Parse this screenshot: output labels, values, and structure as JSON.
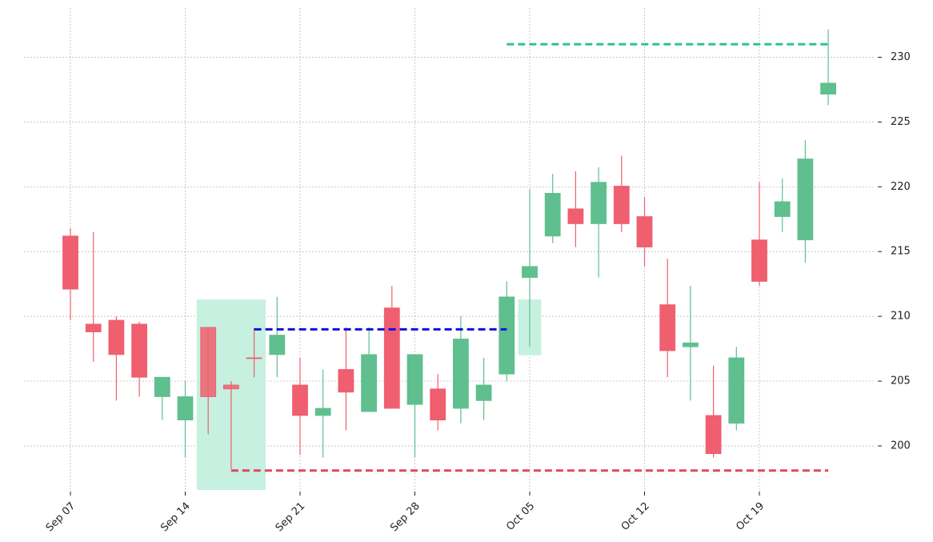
{
  "chart_data": {
    "type": "candlestick",
    "categories": [
      "Sep 07",
      null,
      null,
      null,
      null,
      "Sep 14",
      null,
      null,
      null,
      null,
      "Sep 21",
      null,
      null,
      null,
      null,
      "Sep 28",
      null,
      null,
      null,
      null,
      "Oct 05",
      null,
      null,
      null,
      null,
      "Oct 12",
      null,
      null,
      null,
      null,
      "Oct 19",
      null,
      null,
      null
    ],
    "open": [
      216.2,
      209.4,
      209.7,
      209.4,
      203.8,
      202.0,
      209.15,
      204.7,
      206.8,
      207.05,
      204.7,
      202.35,
      205.9,
      202.65,
      210.65,
      203.2,
      204.4,
      202.9,
      203.5,
      205.55,
      213.0,
      216.2,
      218.3,
      217.15,
      220.05,
      217.7,
      210.9,
      207.65,
      202.35,
      201.75,
      215.9,
      217.7,
      215.9,
      227.15
    ],
    "high": [
      216.8,
      216.5,
      210.0,
      209.6,
      205.3,
      205.0,
      209.15,
      205.0,
      209.1,
      211.5,
      206.8,
      205.9,
      209.15,
      209.15,
      212.35,
      207.05,
      205.55,
      210.0,
      206.8,
      212.7,
      219.8,
      221.0,
      221.2,
      221.5,
      222.4,
      219.2,
      214.45,
      212.35,
      206.2,
      207.65,
      220.35,
      220.65,
      223.6,
      232.15
    ],
    "low": [
      209.7,
      206.5,
      203.5,
      203.8,
      202.0,
      199.1,
      200.9,
      198.2,
      205.3,
      205.3,
      199.3,
      199.1,
      201.2,
      202.65,
      202.9,
      199.1,
      201.2,
      201.75,
      202.0,
      205.0,
      207.65,
      215.65,
      215.35,
      213.0,
      216.5,
      213.85,
      205.3,
      203.5,
      199.1,
      201.2,
      212.35,
      216.5,
      214.15,
      226.3
    ],
    "close": [
      212.1,
      208.8,
      207.05,
      205.3,
      205.3,
      203.8,
      203.8,
      204.4,
      206.8,
      208.55,
      202.35,
      202.9,
      204.15,
      207.05,
      202.9,
      207.05,
      202.0,
      208.25,
      204.7,
      211.5,
      213.85,
      219.5,
      217.15,
      220.35,
      217.15,
      215.35,
      207.35,
      207.95,
      199.4,
      206.8,
      212.7,
      218.85,
      222.15,
      228.0
    ],
    "up_color": "#5fbf8f",
    "down_color": "#ef5f6f",
    "ylim": [
      196.6,
      233.8
    ],
    "yticks": [
      200,
      205,
      210,
      215,
      220,
      225,
      230
    ],
    "grid": true,
    "zones": [
      {
        "start": 5.5,
        "end": 8.5,
        "low": 196.6,
        "high": 211.3,
        "color": "#c6f0df"
      },
      {
        "start": 19.5,
        "end": 20.5,
        "low": 207.0,
        "high": 211.3,
        "color": "#c6f0df"
      }
    ],
    "levels": [
      {
        "value": 209.0,
        "start": 8,
        "end": 19,
        "color": "#1010e0"
      },
      {
        "value": 198.1,
        "start": 7,
        "end": 33,
        "color": "#e0485c"
      },
      {
        "value": 231.0,
        "start": 19,
        "end": 33,
        "color": "#2fc48a"
      }
    ]
  }
}
